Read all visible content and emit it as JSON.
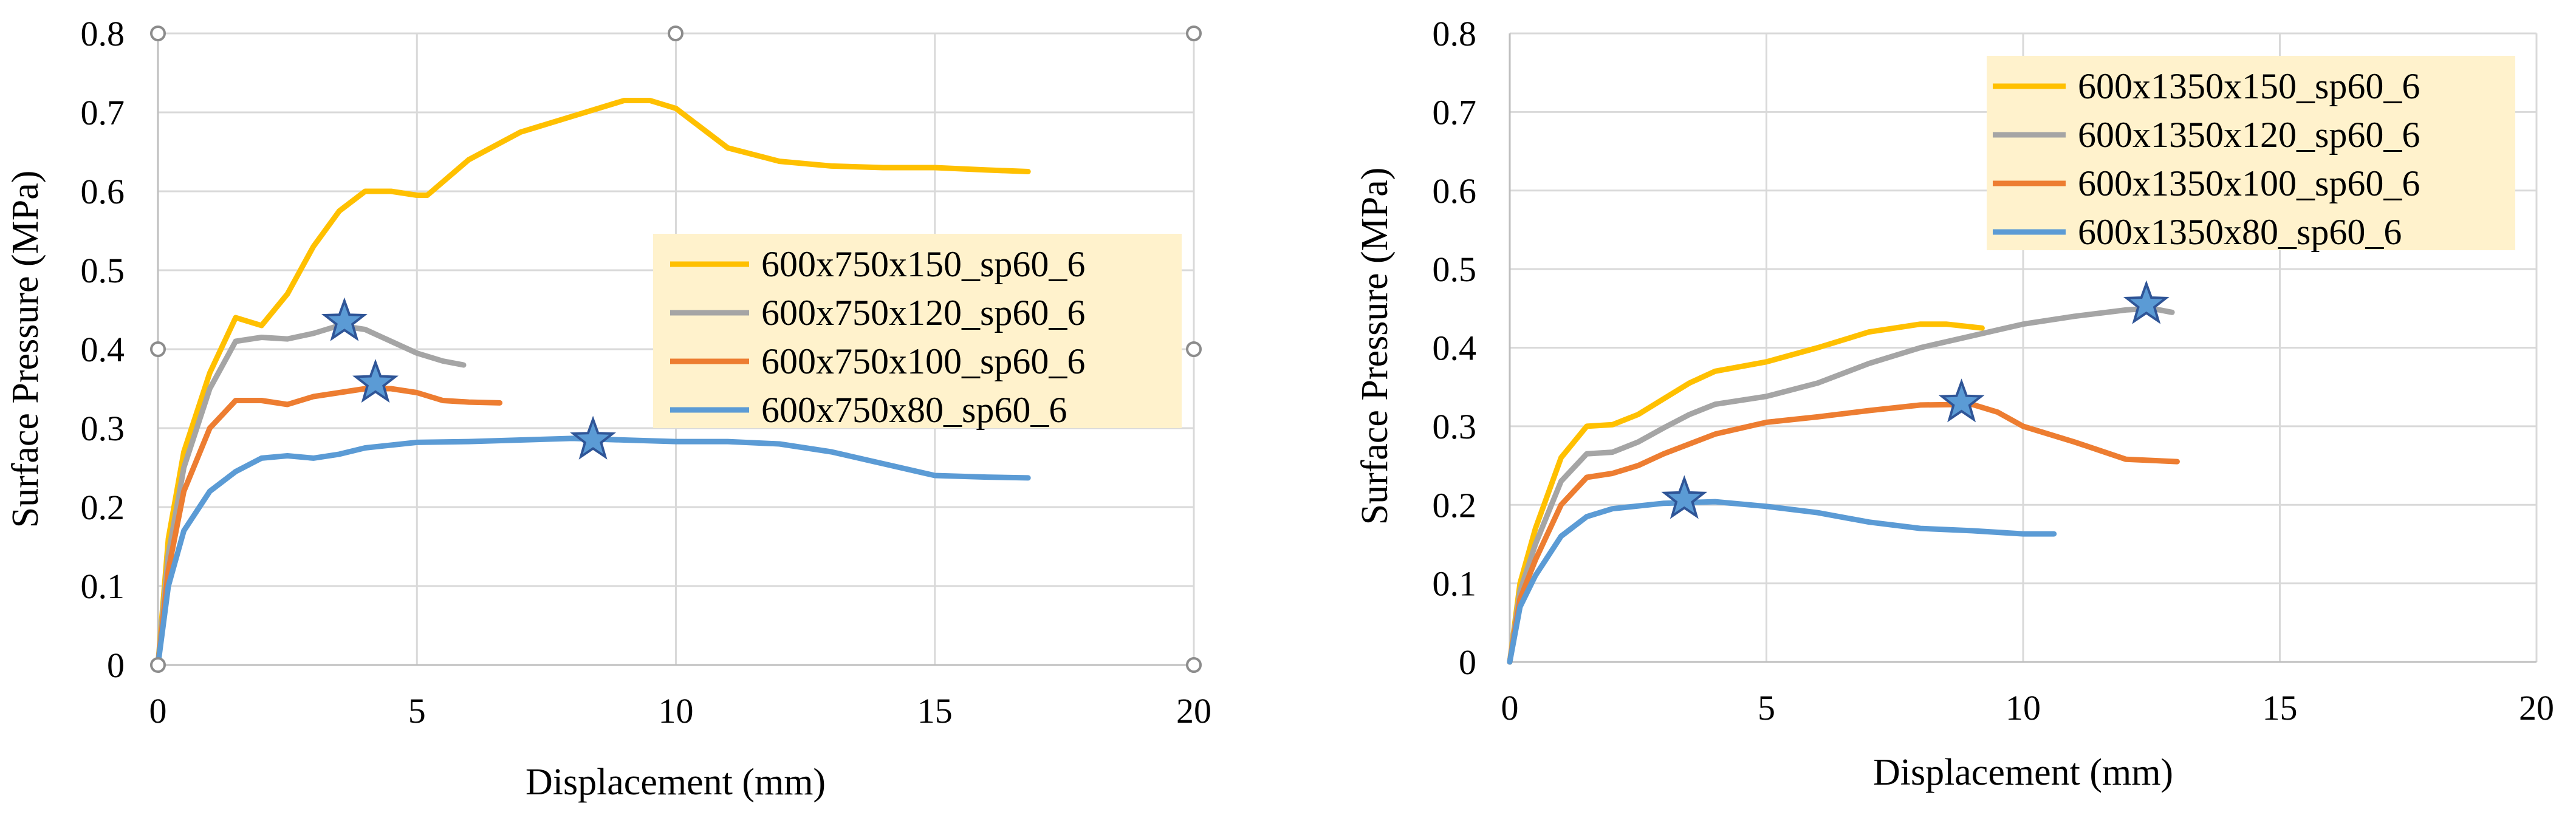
{
  "chart_data": [
    {
      "type": "line",
      "xlabel": "Displacement (mm)",
      "ylabel": "Surface Pressure (MPa)",
      "xlim": [
        0,
        20
      ],
      "ylim": [
        0,
        0.8
      ],
      "x_ticks": [
        0,
        5,
        10,
        15,
        20
      ],
      "y_ticks": [
        0,
        0.1,
        0.2,
        0.3,
        0.4,
        0.5,
        0.6,
        0.7,
        0.8
      ],
      "grid": true,
      "legend_position": "center-right",
      "series": [
        {
          "name": "600x750x150_sp60_6",
          "color": "#FFC000",
          "points": [
            [
              0,
              0
            ],
            [
              0.2,
              0.16
            ],
            [
              0.5,
              0.27
            ],
            [
              1.0,
              0.37
            ],
            [
              1.5,
              0.44
            ],
            [
              2.0,
              0.43
            ],
            [
              2.5,
              0.47
            ],
            [
              3.0,
              0.53
            ],
            [
              3.5,
              0.575
            ],
            [
              4.0,
              0.6
            ],
            [
              4.5,
              0.6
            ],
            [
              5.0,
              0.595
            ],
            [
              5.2,
              0.595
            ],
            [
              6.0,
              0.64
            ],
            [
              7.0,
              0.675
            ],
            [
              8.0,
              0.695
            ],
            [
              9.0,
              0.715
            ],
            [
              9.5,
              0.715
            ],
            [
              10.0,
              0.705
            ],
            [
              10.5,
              0.68
            ],
            [
              11.0,
              0.655
            ],
            [
              12.0,
              0.638
            ],
            [
              13.0,
              0.632
            ],
            [
              14.0,
              0.63
            ],
            [
              15.0,
              0.63
            ],
            [
              16.0,
              0.627
            ],
            [
              16.8,
              0.625
            ]
          ]
        },
        {
          "name": "600x750x120_sp60_6",
          "color": "#A5A5A5",
          "points": [
            [
              0,
              0
            ],
            [
              0.2,
              0.14
            ],
            [
              0.5,
              0.25
            ],
            [
              1.0,
              0.35
            ],
            [
              1.5,
              0.41
            ],
            [
              2.0,
              0.415
            ],
            [
              2.5,
              0.413
            ],
            [
              3.0,
              0.42
            ],
            [
              3.5,
              0.43
            ],
            [
              4.0,
              0.425
            ],
            [
              4.5,
              0.41
            ],
            [
              5.0,
              0.395
            ],
            [
              5.5,
              0.385
            ],
            [
              5.9,
              0.38
            ]
          ]
        },
        {
          "name": "600x750x100_sp60_6",
          "color": "#ED7D31",
          "points": [
            [
              0,
              0
            ],
            [
              0.2,
              0.12
            ],
            [
              0.5,
              0.22
            ],
            [
              1.0,
              0.3
            ],
            [
              1.5,
              0.335
            ],
            [
              2.0,
              0.335
            ],
            [
              2.5,
              0.33
            ],
            [
              3.0,
              0.34
            ],
            [
              3.5,
              0.345
            ],
            [
              4.0,
              0.35
            ],
            [
              4.5,
              0.35
            ],
            [
              5.0,
              0.345
            ],
            [
              5.5,
              0.335
            ],
            [
              6.0,
              0.333
            ],
            [
              6.6,
              0.332
            ]
          ]
        },
        {
          "name": "600x750x80_sp60_6",
          "color": "#5B9BD5",
          "points": [
            [
              0,
              0
            ],
            [
              0.2,
              0.1
            ],
            [
              0.5,
              0.17
            ],
            [
              1.0,
              0.22
            ],
            [
              1.5,
              0.245
            ],
            [
              2.0,
              0.262
            ],
            [
              2.5,
              0.265
            ],
            [
              3.0,
              0.262
            ],
            [
              3.5,
              0.267
            ],
            [
              4.0,
              0.275
            ],
            [
              5.0,
              0.282
            ],
            [
              6.0,
              0.283
            ],
            [
              7.0,
              0.285
            ],
            [
              8.0,
              0.287
            ],
            [
              9.0,
              0.285
            ],
            [
              10.0,
              0.283
            ],
            [
              11.0,
              0.283
            ],
            [
              12.0,
              0.28
            ],
            [
              13.0,
              0.27
            ],
            [
              14.0,
              0.255
            ],
            [
              15.0,
              0.24
            ],
            [
              16.0,
              0.238
            ],
            [
              16.8,
              0.237
            ]
          ]
        }
      ],
      "markers": [
        {
          "x": 3.6,
          "y": 0.435
        },
        {
          "x": 4.2,
          "y": 0.357
        },
        {
          "x": 8.4,
          "y": 0.285
        }
      ]
    },
    {
      "type": "line",
      "xlabel": "Displacement (mm)",
      "ylabel": "Surface Pressure (MPa)",
      "xlim": [
        0,
        20
      ],
      "ylim": [
        0,
        0.8
      ],
      "x_ticks": [
        0,
        5,
        10,
        15,
        20
      ],
      "y_ticks": [
        0,
        0.1,
        0.2,
        0.3,
        0.4,
        0.5,
        0.6,
        0.7,
        0.8
      ],
      "grid": true,
      "legend_position": "top-right",
      "series": [
        {
          "name": "600x1350x150_sp60_6",
          "color": "#FFC000",
          "points": [
            [
              0,
              0
            ],
            [
              0.2,
              0.1
            ],
            [
              0.5,
              0.17
            ],
            [
              1.0,
              0.26
            ],
            [
              1.5,
              0.3
            ],
            [
              2.0,
              0.302
            ],
            [
              2.5,
              0.315
            ],
            [
              3.0,
              0.335
            ],
            [
              3.5,
              0.355
            ],
            [
              4.0,
              0.37
            ],
            [
              5.0,
              0.382
            ],
            [
              6.0,
              0.4
            ],
            [
              7.0,
              0.42
            ],
            [
              8.0,
              0.43
            ],
            [
              8.5,
              0.43
            ],
            [
              9.2,
              0.425
            ]
          ]
        },
        {
          "name": "600x1350x120_sp60_6",
          "color": "#A5A5A5",
          "points": [
            [
              0,
              0
            ],
            [
              0.2,
              0.09
            ],
            [
              0.5,
              0.15
            ],
            [
              1.0,
              0.23
            ],
            [
              1.5,
              0.265
            ],
            [
              2.0,
              0.267
            ],
            [
              2.5,
              0.28
            ],
            [
              3.0,
              0.298
            ],
            [
              3.5,
              0.315
            ],
            [
              4.0,
              0.328
            ],
            [
              5.0,
              0.338
            ],
            [
              6.0,
              0.355
            ],
            [
              7.0,
              0.38
            ],
            [
              8.0,
              0.4
            ],
            [
              9.0,
              0.415
            ],
            [
              10.0,
              0.43
            ],
            [
              11.0,
              0.44
            ],
            [
              12.0,
              0.448
            ],
            [
              12.5,
              0.45
            ],
            [
              12.9,
              0.445
            ]
          ]
        },
        {
          "name": "600x1350x100_sp60_6",
          "color": "#ED7D31",
          "points": [
            [
              0,
              0
            ],
            [
              0.2,
              0.08
            ],
            [
              0.5,
              0.13
            ],
            [
              1.0,
              0.2
            ],
            [
              1.5,
              0.235
            ],
            [
              2.0,
              0.24
            ],
            [
              2.5,
              0.25
            ],
            [
              3.0,
              0.265
            ],
            [
              4.0,
              0.29
            ],
            [
              5.0,
              0.305
            ],
            [
              6.0,
              0.312
            ],
            [
              7.0,
              0.32
            ],
            [
              8.0,
              0.327
            ],
            [
              9.0,
              0.328
            ],
            [
              9.5,
              0.318
            ],
            [
              10.0,
              0.3
            ],
            [
              11.0,
              0.28
            ],
            [
              12.0,
              0.258
            ],
            [
              13.0,
              0.255
            ]
          ]
        },
        {
          "name": "600x1350x80_sp60_6",
          "color": "#5B9BD5",
          "points": [
            [
              0,
              0
            ],
            [
              0.2,
              0.07
            ],
            [
              0.5,
              0.11
            ],
            [
              1.0,
              0.16
            ],
            [
              1.5,
              0.185
            ],
            [
              2.0,
              0.195
            ],
            [
              3.0,
              0.202
            ],
            [
              4.0,
              0.204
            ],
            [
              5.0,
              0.198
            ],
            [
              6.0,
              0.19
            ],
            [
              7.0,
              0.178
            ],
            [
              8.0,
              0.17
            ],
            [
              9.0,
              0.167
            ],
            [
              10.0,
              0.163
            ],
            [
              10.6,
              0.163
            ]
          ]
        }
      ],
      "markers": [
        {
          "x": 3.4,
          "y": 0.207
        },
        {
          "x": 8.8,
          "y": 0.33
        },
        {
          "x": 12.4,
          "y": 0.455
        }
      ]
    }
  ]
}
